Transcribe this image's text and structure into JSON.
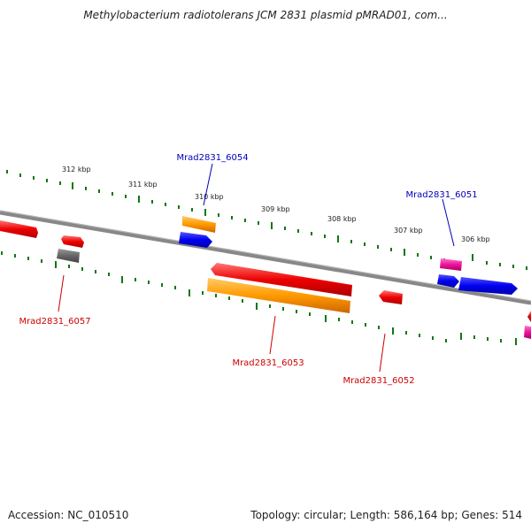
{
  "title": "Methylobacterium radiotolerans JCM 2831 plasmid pMRAD01, com...",
  "footer": {
    "accession": "Accession: NC_010510",
    "stats": "Topology: circular; Length: 586,164 bp; Genes: 514"
  },
  "ruler": {
    "kbp_labels": [
      "312 kbp",
      "311 kbp",
      "310 kbp",
      "309 kbp",
      "308 kbp",
      "307 kbp",
      "306 kbp"
    ]
  },
  "genes": {
    "labels_top": [
      "Mrad2831_6054",
      "Mrad2831_6051"
    ],
    "labels_bottom": [
      "Mrad2831_6057",
      "Mrad2831_6053",
      "Mrad2831_6052"
    ]
  },
  "colors": {
    "red": "#ee0000",
    "orange": "#ff9900",
    "blue": "#0000ee",
    "pink": "#ee1199",
    "gray": "#666666",
    "tick_green": "#117711",
    "label_blue": "#0000bb",
    "label_red": "#cc0000"
  }
}
